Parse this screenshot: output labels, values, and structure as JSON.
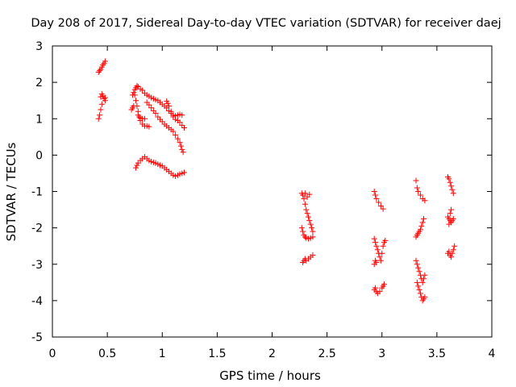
{
  "chart_data": {
    "type": "scatter",
    "title": "Day 208 of 2017, Sidereal Day-to-day VTEC variation (SDTVAR) for receiver daej",
    "xlabel": "GPS time / hours",
    "ylabel": "SDTVAR / TECUs",
    "xlim": [
      0,
      4
    ],
    "ylim": [
      -5,
      3
    ],
    "xticks": [
      0,
      0.5,
      1,
      1.5,
      2,
      2.5,
      3,
      3.5,
      4
    ],
    "xtick_labels": [
      "0",
      "0.5",
      "1",
      "1.5",
      "2",
      "2.5",
      "3",
      "3.5",
      "4"
    ],
    "yticks": [
      -5,
      -4,
      -3,
      -2,
      -1,
      0,
      1,
      2,
      3
    ],
    "ytick_labels": [
      "-5",
      "-4",
      "-3",
      "-2",
      "-1",
      "0",
      "1",
      "2",
      "3"
    ],
    "grid": false,
    "marker": "+",
    "color": "#ff0000",
    "series": [
      {
        "name": "SDTVAR",
        "points": [
          [
            0.42,
            2.28
          ],
          [
            0.43,
            2.32
          ],
          [
            0.44,
            2.36
          ],
          [
            0.45,
            2.42
          ],
          [
            0.46,
            2.48
          ],
          [
            0.47,
            2.52
          ],
          [
            0.48,
            2.58
          ],
          [
            0.42,
            1.0
          ],
          [
            0.43,
            1.1
          ],
          [
            0.44,
            1.25
          ],
          [
            0.45,
            1.4
          ],
          [
            0.44,
            1.6
          ],
          [
            0.45,
            1.68
          ],
          [
            0.46,
            1.63
          ],
          [
            0.47,
            1.55
          ],
          [
            0.48,
            1.5
          ],
          [
            0.48,
            1.58
          ],
          [
            0.72,
            1.25
          ],
          [
            0.73,
            1.3
          ],
          [
            0.74,
            1.35
          ],
          [
            0.73,
            1.65
          ],
          [
            0.74,
            1.72
          ],
          [
            0.75,
            1.8
          ],
          [
            0.76,
            1.85
          ],
          [
            0.77,
            1.9
          ],
          [
            0.78,
            1.88
          ],
          [
            0.8,
            1.82
          ],
          [
            0.82,
            1.78
          ],
          [
            0.84,
            1.7
          ],
          [
            0.86,
            1.65
          ],
          [
            0.88,
            1.62
          ],
          [
            0.9,
            1.58
          ],
          [
            0.92,
            1.55
          ],
          [
            0.94,
            1.52
          ],
          [
            0.96,
            1.5
          ],
          [
            0.98,
            1.45
          ],
          [
            1.0,
            1.4
          ],
          [
            1.02,
            1.35
          ],
          [
            1.04,
            1.3
          ],
          [
            1.06,
            1.22
          ],
          [
            1.08,
            1.15
          ],
          [
            1.1,
            1.1
          ],
          [
            1.12,
            1.08
          ],
          [
            1.14,
            1.1
          ],
          [
            1.16,
            1.12
          ],
          [
            1.18,
            1.1
          ],
          [
            0.75,
            1.65
          ],
          [
            0.76,
            1.5
          ],
          [
            0.77,
            1.35
          ],
          [
            0.78,
            1.2
          ],
          [
            0.79,
            1.05
          ],
          [
            0.8,
            0.95
          ],
          [
            0.82,
            0.85
          ],
          [
            0.84,
            0.8
          ],
          [
            0.86,
            0.8
          ],
          [
            0.88,
            0.78
          ],
          [
            0.78,
            1.1
          ],
          [
            0.8,
            1.02
          ],
          [
            0.82,
            1.0
          ],
          [
            0.84,
            1.0
          ],
          [
            0.86,
            1.45
          ],
          [
            0.88,
            1.38
          ],
          [
            0.9,
            1.3
          ],
          [
            0.92,
            1.22
          ],
          [
            0.94,
            1.15
          ],
          [
            0.96,
            1.05
          ],
          [
            0.98,
            0.98
          ],
          [
            1.0,
            0.92
          ],
          [
            1.02,
            0.85
          ],
          [
            1.04,
            0.8
          ],
          [
            1.06,
            0.75
          ],
          [
            1.08,
            0.7
          ],
          [
            1.1,
            0.65
          ],
          [
            1.12,
            0.55
          ],
          [
            1.14,
            0.45
          ],
          [
            1.16,
            0.35
          ],
          [
            1.17,
            0.25
          ],
          [
            1.18,
            0.15
          ],
          [
            1.19,
            0.08
          ],
          [
            1.04,
            1.48
          ],
          [
            1.05,
            1.42
          ],
          [
            1.06,
            1.35
          ],
          [
            1.08,
            1.2
          ],
          [
            1.1,
            1.05
          ],
          [
            1.12,
            0.98
          ],
          [
            1.14,
            0.95
          ],
          [
            1.16,
            0.9
          ],
          [
            1.18,
            0.82
          ],
          [
            1.2,
            0.75
          ],
          [
            0.76,
            -0.35
          ],
          [
            0.77,
            -0.28
          ],
          [
            0.78,
            -0.22
          ],
          [
            0.8,
            -0.15
          ],
          [
            0.82,
            -0.1
          ],
          [
            0.84,
            -0.05
          ],
          [
            0.86,
            -0.1
          ],
          [
            0.88,
            -0.15
          ],
          [
            0.9,
            -0.18
          ],
          [
            0.92,
            -0.2
          ],
          [
            0.94,
            -0.22
          ],
          [
            0.96,
            -0.25
          ],
          [
            0.98,
            -0.28
          ],
          [
            1.0,
            -0.3
          ],
          [
            1.02,
            -0.35
          ],
          [
            1.04,
            -0.4
          ],
          [
            1.06,
            -0.45
          ],
          [
            1.08,
            -0.5
          ],
          [
            1.1,
            -0.55
          ],
          [
            1.12,
            -0.58
          ],
          [
            1.14,
            -0.55
          ],
          [
            1.16,
            -0.52
          ],
          [
            1.18,
            -0.5
          ],
          [
            1.2,
            -0.48
          ],
          [
            2.27,
            -1.05
          ],
          [
            2.28,
            -1.1
          ],
          [
            2.29,
            -1.2
          ],
          [
            2.3,
            -1.35
          ],
          [
            2.31,
            -1.5
          ],
          [
            2.32,
            -1.6
          ],
          [
            2.33,
            -1.7
          ],
          [
            2.34,
            -1.8
          ],
          [
            2.35,
            -1.9
          ],
          [
            2.36,
            -2.0
          ],
          [
            2.37,
            -2.1
          ],
          [
            2.3,
            -1.05
          ],
          [
            2.32,
            -1.15
          ],
          [
            2.34,
            -1.08
          ],
          [
            2.27,
            -2.0
          ],
          [
            2.28,
            -2.1
          ],
          [
            2.29,
            -2.2
          ],
          [
            2.3,
            -2.25
          ],
          [
            2.31,
            -2.28
          ],
          [
            2.33,
            -2.3
          ],
          [
            2.35,
            -2.28
          ],
          [
            2.37,
            -2.25
          ],
          [
            2.28,
            -2.95
          ],
          [
            2.29,
            -2.9
          ],
          [
            2.3,
            -2.85
          ],
          [
            2.31,
            -2.9
          ],
          [
            2.33,
            -2.85
          ],
          [
            2.35,
            -2.8
          ],
          [
            2.37,
            -2.75
          ],
          [
            2.93,
            -1.0
          ],
          [
            2.94,
            -1.1
          ],
          [
            2.95,
            -1.2
          ],
          [
            2.97,
            -1.3
          ],
          [
            2.99,
            -1.4
          ],
          [
            3.01,
            -1.48
          ],
          [
            2.93,
            -2.3
          ],
          [
            2.94,
            -2.4
          ],
          [
            2.95,
            -2.5
          ],
          [
            2.96,
            -2.6
          ],
          [
            2.97,
            -2.7
          ],
          [
            2.98,
            -2.8
          ],
          [
            2.99,
            -2.9
          ],
          [
            3.0,
            -2.7
          ],
          [
            3.01,
            -2.5
          ],
          [
            3.02,
            -2.4
          ],
          [
            3.03,
            -2.35
          ],
          [
            2.93,
            -3.0
          ],
          [
            2.94,
            -2.9
          ],
          [
            2.95,
            -2.95
          ],
          [
            2.93,
            -3.7
          ],
          [
            2.94,
            -3.65
          ],
          [
            2.95,
            -3.75
          ],
          [
            2.96,
            -3.8
          ],
          [
            2.98,
            -3.75
          ],
          [
            3.0,
            -3.65
          ],
          [
            3.01,
            -3.6
          ],
          [
            3.02,
            -3.55
          ],
          [
            3.31,
            -0.7
          ],
          [
            3.32,
            -0.9
          ],
          [
            3.33,
            -1.0
          ],
          [
            3.35,
            -1.1
          ],
          [
            3.37,
            -1.2
          ],
          [
            3.39,
            -1.25
          ],
          [
            3.31,
            -2.25
          ],
          [
            3.32,
            -2.2
          ],
          [
            3.33,
            -2.15
          ],
          [
            3.34,
            -2.1
          ],
          [
            3.35,
            -2.05
          ],
          [
            3.36,
            -1.95
          ],
          [
            3.37,
            -1.85
          ],
          [
            3.38,
            -1.75
          ],
          [
            3.31,
            -2.9
          ],
          [
            3.32,
            -3.0
          ],
          [
            3.33,
            -3.1
          ],
          [
            3.34,
            -3.2
          ],
          [
            3.35,
            -3.3
          ],
          [
            3.36,
            -3.4
          ],
          [
            3.37,
            -3.5
          ],
          [
            3.38,
            -3.4
          ],
          [
            3.39,
            -3.3
          ],
          [
            3.32,
            -3.5
          ],
          [
            3.33,
            -3.6
          ],
          [
            3.34,
            -3.7
          ],
          [
            3.35,
            -3.8
          ],
          [
            3.36,
            -3.9
          ],
          [
            3.37,
            -4.0
          ],
          [
            3.38,
            -3.95
          ],
          [
            3.39,
            -3.9
          ],
          [
            3.6,
            -0.6
          ],
          [
            3.61,
            -0.65
          ],
          [
            3.62,
            -0.75
          ],
          [
            3.63,
            -0.85
          ],
          [
            3.64,
            -0.95
          ],
          [
            3.65,
            -1.05
          ],
          [
            3.6,
            -1.7
          ],
          [
            3.61,
            -1.75
          ],
          [
            3.62,
            -1.8
          ],
          [
            3.63,
            -1.85
          ],
          [
            3.64,
            -1.8
          ],
          [
            3.65,
            -1.75
          ],
          [
            3.61,
            -1.9
          ],
          [
            3.62,
            -1.6
          ],
          [
            3.63,
            -1.5
          ],
          [
            3.6,
            -2.7
          ],
          [
            3.61,
            -2.65
          ],
          [
            3.62,
            -2.75
          ],
          [
            3.63,
            -2.8
          ],
          [
            3.64,
            -2.7
          ],
          [
            3.65,
            -2.6
          ],
          [
            3.66,
            -2.5
          ]
        ]
      }
    ]
  }
}
